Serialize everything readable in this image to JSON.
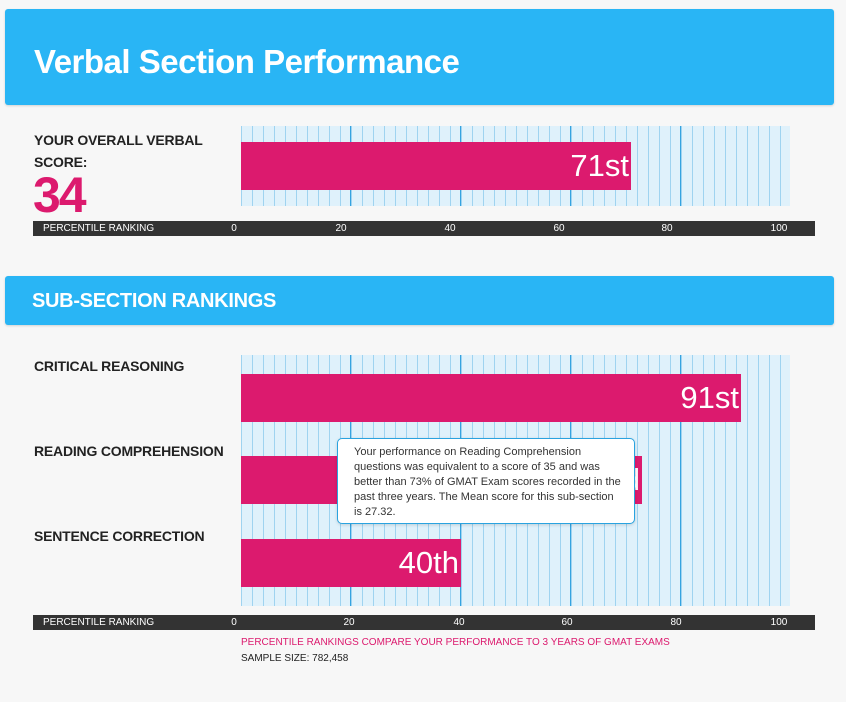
{
  "header": {
    "title": "Verbal Section Performance"
  },
  "overall": {
    "label": "YOUR OVERALL VERBAL SCORE:",
    "score": "34",
    "percentile": 71,
    "percentile_label": "71st"
  },
  "axis": {
    "title": "PERCENTILE RANKING",
    "ticks": [
      "0",
      "20",
      "40",
      "60",
      "80",
      "100"
    ],
    "min": 0,
    "max": 100
  },
  "subsection": {
    "title": "SUB-SECTION RANKINGS",
    "rows": [
      {
        "label": "CRITICAL REASONING",
        "percentile": 91,
        "percentile_label": "91st"
      },
      {
        "label": "READING COMPREHENSION",
        "percentile": 73,
        "percentile_label": "73rd"
      },
      {
        "label": "SENTENCE CORRECTION",
        "percentile": 40,
        "percentile_label": "40th"
      }
    ]
  },
  "tooltip": {
    "text": "Your performance on Reading Comprehension questions was equivalent to a score of 35 and was better than 73% of GMAT Exam scores recorded in the past three years. The Mean score for this sub-section is 27.32."
  },
  "footer": {
    "note": "PERCENTILE RANKINGS COMPARE YOUR PERFORMANCE TO 3 YEARS OF GMAT EXAMS",
    "sample": "SAMPLE SIZE: 782,458"
  },
  "colors": {
    "banner": "#29b5f5",
    "bar": "#dc1a6e",
    "grid_background": "#dff1fb",
    "axis_bar": "#333333"
  }
}
